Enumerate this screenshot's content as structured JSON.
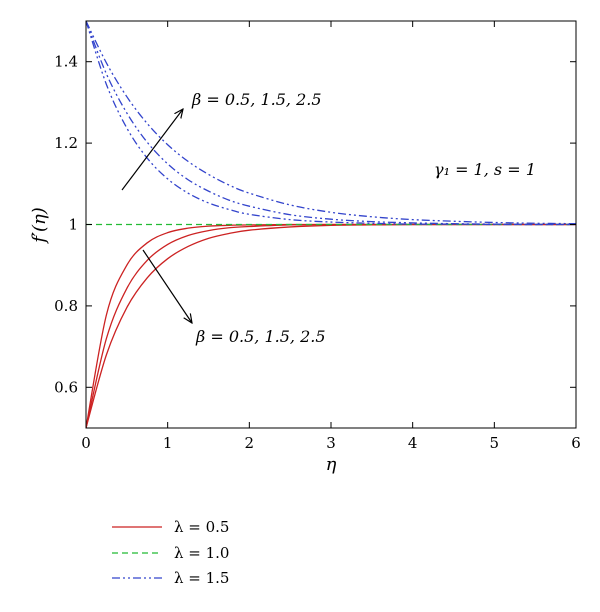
{
  "chart_data": {
    "type": "line",
    "xlabel": "η",
    "ylabel": "f′(η)",
    "xlim": [
      0,
      6
    ],
    "ylim": [
      0.5,
      1.5
    ],
    "x_ticks": [
      "0",
      "1",
      "2",
      "3",
      "4",
      "5",
      "6"
    ],
    "y_ticks": [
      "0.6",
      "0.8",
      "1",
      "1.2",
      "1.4"
    ],
    "x_tick_values": [
      0,
      1,
      2,
      3,
      4,
      5,
      6
    ],
    "y_tick_values": [
      0.6,
      0.8,
      1.0,
      1.2,
      1.4
    ],
    "grid": false,
    "legend_position": "bottom-left",
    "colors": {
      "lambda_0_5": "#cc2222",
      "lambda_1_0": "#22bb33",
      "lambda_1_5": "#3344cc"
    },
    "annotations": {
      "upper_beta": "β = 0.5, 1.5, 2.5",
      "lower_beta": "β = 0.5, 1.5, 2.5",
      "params": "γ₁ = 1, s = 1"
    },
    "legend": [
      {
        "label": "λ = 0.5",
        "style": "solid",
        "color": "#cc2222"
      },
      {
        "label": "λ = 1.0",
        "style": "dashed",
        "color": "#22bb33"
      },
      {
        "label": "λ = 1.5",
        "style": "dashdotdot",
        "color": "#3344cc"
      }
    ],
    "x": [
      0,
      0.25,
      0.5,
      0.75,
      1,
      1.25,
      1.5,
      1.75,
      2,
      2.5,
      3,
      3.5,
      4,
      4.5,
      5,
      5.5,
      6
    ],
    "series": [
      {
        "group": "lambda_0_5",
        "beta": 0.5,
        "values": [
          0.5,
          0.778,
          0.9,
          0.955,
          0.98,
          0.991,
          0.996,
          0.998,
          0.999,
          1.0,
          1.0,
          1.0,
          1.0,
          1.0,
          1.0,
          1.0,
          1.0
        ]
      },
      {
        "group": "lambda_0_5",
        "beta": 1.5,
        "values": [
          0.5,
          0.72,
          0.843,
          0.912,
          0.951,
          0.973,
          0.985,
          0.992,
          0.995,
          0.999,
          1.0,
          1.0,
          1.0,
          1.0,
          1.0,
          1.0,
          1.0
        ]
      },
      {
        "group": "lambda_0_5",
        "beta": 2.5,
        "values": [
          0.5,
          0.68,
          0.796,
          0.869,
          0.916,
          0.946,
          0.966,
          0.978,
          0.986,
          0.994,
          0.998,
          0.999,
          1.0,
          1.0,
          1.0,
          1.0,
          1.0
        ]
      },
      {
        "group": "lambda_1_0",
        "values": [
          1,
          1,
          1,
          1,
          1,
          1,
          1,
          1,
          1,
          1,
          1,
          1,
          1,
          1,
          1,
          1,
          1
        ]
      },
      {
        "group": "lambda_1_5",
        "beta": 0.5,
        "values": [
          1.5,
          1.344,
          1.237,
          1.163,
          1.112,
          1.077,
          1.053,
          1.037,
          1.025,
          1.012,
          1.006,
          1.003,
          1.001,
          1.001,
          1.0,
          1.0,
          1.0
        ]
      },
      {
        "group": "lambda_1_5",
        "beta": 1.5,
        "values": [
          1.5,
          1.37,
          1.274,
          1.202,
          1.149,
          1.11,
          1.082,
          1.06,
          1.045,
          1.024,
          1.013,
          1.007,
          1.004,
          1.002,
          1.001,
          1.0,
          1.0
        ]
      },
      {
        "group": "lambda_1_5",
        "beta": 2.5,
        "values": [
          1.5,
          1.397,
          1.314,
          1.248,
          1.196,
          1.155,
          1.123,
          1.097,
          1.077,
          1.048,
          1.03,
          1.019,
          1.012,
          1.008,
          1.005,
          1.003,
          1.002
        ]
      }
    ]
  }
}
